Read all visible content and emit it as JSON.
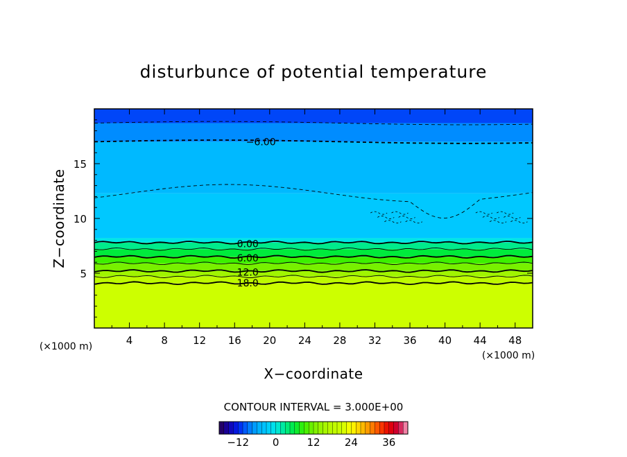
{
  "chart_data": {
    "type": "heatmap",
    "title": "disturbunce of potential temperature",
    "xlabel": "X−coordinate",
    "ylabel": "Z−coordinate",
    "x_unit": "(×1000 m)",
    "y_unit": "(×1000 m)",
    "xlim": [
      0,
      50
    ],
    "ylim": [
      0,
      20
    ],
    "x_ticks": [
      4,
      8,
      12,
      16,
      20,
      24,
      28,
      32,
      36,
      40,
      44,
      48
    ],
    "y_ticks": [
      5,
      10,
      15
    ],
    "contour_interval_text": "CONTOUR INTERVAL = 3.000E+00",
    "contour_labels": [
      {
        "text": "−6.00",
        "x": 19,
        "z": 17.0
      },
      {
        "text": "0.00",
        "x": 17.5,
        "z": 7.7
      },
      {
        "text": "6.00",
        "x": 17.5,
        "z": 6.4
      },
      {
        "text": "12.0",
        "x": 17.5,
        "z": 5.1
      },
      {
        "text": "18.0",
        "x": 17.5,
        "z": 4.1
      }
    ],
    "contours": [
      {
        "value": -9,
        "z": 18.7,
        "style": "dashed"
      },
      {
        "value": -6,
        "z": 17.0,
        "style": "dashed"
      },
      {
        "value": -3,
        "z": 12.3,
        "style": "dashed"
      },
      {
        "value": 0,
        "z": 7.8,
        "style": "solid"
      },
      {
        "value": 3,
        "z": 7.2,
        "style": "solid"
      },
      {
        "value": 6,
        "z": 6.5,
        "style": "solid"
      },
      {
        "value": 9,
        "z": 5.9,
        "style": "solid"
      },
      {
        "value": 12,
        "z": 5.2,
        "style": "solid"
      },
      {
        "value": 15,
        "z": 4.7,
        "style": "solid"
      },
      {
        "value": 18,
        "z": 4.1,
        "style": "solid"
      }
    ],
    "field_bands": [
      {
        "z0": 0,
        "z1": 4.1,
        "value": 21
      },
      {
        "z0": 4.1,
        "z1": 4.7,
        "value": 18
      },
      {
        "z0": 4.7,
        "z1": 5.2,
        "value": 15
      },
      {
        "z0": 5.2,
        "z1": 5.9,
        "value": 12
      },
      {
        "z0": 5.9,
        "z1": 6.5,
        "value": 9
      },
      {
        "z0": 6.5,
        "z1": 7.2,
        "value": 6
      },
      {
        "z0": 7.2,
        "z1": 7.8,
        "value": 3
      },
      {
        "z0": 7.8,
        "z1": 8.2,
        "value": 0
      },
      {
        "z0": 8.2,
        "z1": 12.3,
        "value": -3
      },
      {
        "z0": 12.3,
        "z1": 17.0,
        "value": -4.5
      },
      {
        "z0": 17.0,
        "z1": 18.7,
        "value": -7.5
      },
      {
        "z0": 18.7,
        "z1": 20,
        "value": -10.5
      }
    ],
    "colorbar": {
      "min": -18,
      "max": 42,
      "ticks": [
        -12,
        0,
        12,
        24,
        36
      ],
      "tick_labels": [
        "−12",
        "0",
        "12",
        "24",
        "36"
      ]
    }
  }
}
